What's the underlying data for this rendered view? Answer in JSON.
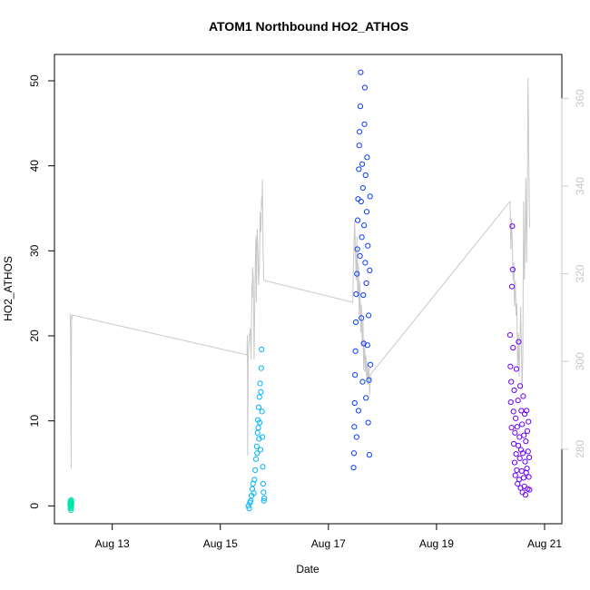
{
  "chart_data": {
    "type": "scatter",
    "title": "ATOM1 Northbound HO2_ATHOS",
    "xlabel": "Date",
    "ylabel": "HO2_ATHOS",
    "y2label": "",
    "x_range": [
      "2022-08-11T22:20",
      "2022-08-21T07:40"
    ],
    "ylim": [
      -2.1,
      53.1
    ],
    "y2lim": [
      263.0,
      370.0
    ],
    "grid": false,
    "legend": "none",
    "x_ticks": [
      {
        "date": "2022-08-13",
        "label": "Aug 13"
      },
      {
        "date": "2022-08-15",
        "label": "Aug 15"
      },
      {
        "date": "2022-08-17",
        "label": "Aug 17"
      },
      {
        "date": "2022-08-19",
        "label": "Aug 19"
      },
      {
        "date": "2022-08-21",
        "label": "Aug 21"
      }
    ],
    "y_ticks": [
      0,
      10,
      20,
      30,
      40,
      50
    ],
    "y2_ticks": [
      280,
      300,
      320,
      340,
      360
    ],
    "colors": {
      "flight1": "#00e5a8",
      "flight2": "#00b2ff",
      "flight3": "#0a3cff",
      "flight4": "#6a00ff",
      "secondary_line": "#c8c8c8",
      "frame": "#000000"
    },
    "series": [
      {
        "color_key": "flight1",
        "date": "2022-08-12",
        "t_start": "05:20",
        "t_end": "05:55",
        "points": [
          [
            "05:20",
            0.1
          ],
          [
            "05:22",
            0.4
          ],
          [
            "05:25",
            -0.3
          ],
          [
            "05:28",
            0.2
          ],
          [
            "05:30",
            0.6
          ],
          [
            "05:32",
            -0.2
          ],
          [
            "05:35",
            0.0
          ],
          [
            "05:38",
            0.5
          ],
          [
            "05:40",
            -0.5
          ],
          [
            "05:42",
            0.3
          ],
          [
            "05:45",
            0.1
          ],
          [
            "05:48",
            0.7
          ],
          [
            "05:50",
            -0.1
          ],
          [
            "05:52",
            0.2
          ],
          [
            "05:55",
            0.4
          ]
        ]
      },
      {
        "color_key": "flight2",
        "date": "2022-08-15",
        "t_start": "12:30",
        "t_end": "19:30",
        "points": [
          [
            "12:30",
            0.0
          ],
          [
            "12:50",
            -0.3
          ],
          [
            "13:10",
            0.4
          ],
          [
            "13:30",
            0.6
          ],
          [
            "13:50",
            1.2
          ],
          [
            "14:10",
            2.0
          ],
          [
            "14:30",
            2.6
          ],
          [
            "14:50",
            1.5
          ],
          [
            "15:10",
            3.1
          ],
          [
            "15:30",
            4.2
          ],
          [
            "15:50",
            5.5
          ],
          [
            "16:10",
            7.0
          ],
          [
            "16:20",
            6.2
          ],
          [
            "16:30",
            8.6
          ],
          [
            "16:40",
            10.1
          ],
          [
            "16:50",
            9.2
          ],
          [
            "17:00",
            11.6
          ],
          [
            "17:10",
            7.9
          ],
          [
            "17:20",
            12.8
          ],
          [
            "17:30",
            9.8
          ],
          [
            "17:40",
            14.4
          ],
          [
            "17:50",
            6.6
          ],
          [
            "18:00",
            13.4
          ],
          [
            "18:10",
            16.2
          ],
          [
            "18:20",
            18.4
          ],
          [
            "18:30",
            11.1
          ],
          [
            "18:40",
            8.1
          ],
          [
            "18:50",
            4.6
          ],
          [
            "19:00",
            2.6
          ],
          [
            "19:10",
            1.6
          ],
          [
            "19:20",
            0.6
          ],
          [
            "19:30",
            0.9
          ]
        ]
      },
      {
        "color_key": "flight3",
        "date": "2022-08-17",
        "t_start": "11:10",
        "t_end": "18:40",
        "points": [
          [
            "11:10",
            4.5
          ],
          [
            "11:20",
            6.2
          ],
          [
            "11:30",
            9.3
          ],
          [
            "11:40",
            12.1
          ],
          [
            "11:50",
            15.4
          ],
          [
            "12:00",
            18.2
          ],
          [
            "12:10",
            21.6
          ],
          [
            "12:20",
            24.9
          ],
          [
            "12:30",
            8.1
          ],
          [
            "12:40",
            27.3
          ],
          [
            "12:50",
            30.2
          ],
          [
            "13:00",
            33.6
          ],
          [
            "13:10",
            36.1
          ],
          [
            "13:20",
            11.2
          ],
          [
            "13:30",
            39.6
          ],
          [
            "13:40",
            42.4
          ],
          [
            "13:50",
            44.0
          ],
          [
            "14:00",
            29.4
          ],
          [
            "14:10",
            47.0
          ],
          [
            "14:20",
            51.0
          ],
          [
            "14:30",
            35.8
          ],
          [
            "14:40",
            22.1
          ],
          [
            "14:50",
            31.6
          ],
          [
            "15:00",
            40.2
          ],
          [
            "15:10",
            14.6
          ],
          [
            "15:20",
            37.4
          ],
          [
            "15:30",
            24.8
          ],
          [
            "15:40",
            19.1
          ],
          [
            "15:50",
            33.0
          ],
          [
            "16:00",
            44.9
          ],
          [
            "16:10",
            49.2
          ],
          [
            "16:20",
            28.6
          ],
          [
            "16:30",
            38.9
          ],
          [
            "16:40",
            12.7
          ],
          [
            "16:50",
            26.2
          ],
          [
            "17:00",
            34.6
          ],
          [
            "17:10",
            41.0
          ],
          [
            "17:20",
            18.9
          ],
          [
            "17:30",
            30.6
          ],
          [
            "17:40",
            9.8
          ],
          [
            "17:50",
            22.4
          ],
          [
            "18:00",
            14.8
          ],
          [
            "18:10",
            6.0
          ],
          [
            "18:20",
            27.7
          ],
          [
            "18:30",
            36.4
          ],
          [
            "18:40",
            16.6
          ]
        ]
      },
      {
        "color_key": "flight4",
        "date": "2022-08-20",
        "t_start": "08:40",
        "t_end": "17:20",
        "points": [
          [
            "08:40",
            20.1
          ],
          [
            "08:50",
            16.4
          ],
          [
            "09:00",
            12.2
          ],
          [
            "09:10",
            14.6
          ],
          [
            "09:20",
            9.2
          ],
          [
            "09:30",
            25.8
          ],
          [
            "09:40",
            32.9
          ],
          [
            "09:50",
            27.8
          ],
          [
            "10:00",
            18.6
          ],
          [
            "10:10",
            11.1
          ],
          [
            "10:20",
            7.3
          ],
          [
            "10:30",
            13.6
          ],
          [
            "10:40",
            5.1
          ],
          [
            "10:50",
            8.6
          ],
          [
            "11:00",
            3.6
          ],
          [
            "11:10",
            10.3
          ],
          [
            "11:20",
            6.1
          ],
          [
            "11:30",
            16.1
          ],
          [
            "11:40",
            4.2
          ],
          [
            "11:50",
            9.3
          ],
          [
            "12:00",
            2.6
          ],
          [
            "12:10",
            12.4
          ],
          [
            "12:20",
            7.1
          ],
          [
            "12:30",
            19.3
          ],
          [
            "12:40",
            3.1
          ],
          [
            "12:50",
            8.1
          ],
          [
            "13:00",
            5.6
          ],
          [
            "13:10",
            14.1
          ],
          [
            "13:20",
            2.1
          ],
          [
            "13:30",
            6.6
          ],
          [
            "13:40",
            11.2
          ],
          [
            "13:50",
            4.1
          ],
          [
            "14:00",
            9.6
          ],
          [
            "14:10",
            1.6
          ],
          [
            "14:20",
            6.2
          ],
          [
            "14:30",
            12.9
          ],
          [
            "14:40",
            3.3
          ],
          [
            "14:50",
            8.3
          ],
          [
            "15:00",
            2.3
          ],
          [
            "15:10",
            10.8
          ],
          [
            "15:20",
            5.2
          ],
          [
            "15:30",
            1.3
          ],
          [
            "15:40",
            7.6
          ],
          [
            "15:50",
            3.9
          ],
          [
            "16:00",
            11.2
          ],
          [
            "16:10",
            4.4
          ],
          [
            "16:20",
            8.8
          ],
          [
            "16:30",
            2.0
          ],
          [
            "16:40",
            6.4
          ],
          [
            "16:50",
            9.9
          ],
          [
            "17:00",
            3.4
          ],
          [
            "17:10",
            5.7
          ],
          [
            "17:20",
            1.9
          ]
        ]
      }
    ],
    "secondary_series": {
      "color_key": "secondary_line",
      "description_axis": "right",
      "points": [
        [
          "2022-08-12T05:10",
          311.0
        ],
        [
          "2022-08-12T05:20",
          310.2
        ],
        [
          "2022-08-12T05:30",
          306.5
        ],
        [
          "2022-08-12T05:40",
          285.5
        ],
        [
          "2022-08-12T05:45",
          275.5
        ],
        [
          "2022-08-12T05:50",
          296.5
        ],
        [
          "2022-08-12T05:55",
          310.5
        ],
        [
          "2022-08-12T06:00",
          309.5
        ],
        [
          "2022-08-12T06:10",
          310.6
        ],
        [
          "2022-08-15T11:50",
          301.5
        ],
        [
          "2022-08-15T12:00",
          306.0
        ],
        [
          "2022-08-15T12:10",
          278.5
        ],
        [
          "2022-08-15T12:20",
          300.6
        ],
        [
          "2022-08-15T12:30",
          302.5
        ],
        [
          "2022-08-15T13:00",
          306.0
        ],
        [
          "2022-08-15T13:20",
          307.5
        ],
        [
          "2022-08-15T13:40",
          300.5
        ],
        [
          "2022-08-15T14:00",
          317.5
        ],
        [
          "2022-08-15T14:10",
          314.5
        ],
        [
          "2022-08-15T14:20",
          321.5
        ],
        [
          "2022-08-15T14:40",
          318.5
        ],
        [
          "2022-08-15T15:00",
          300.5
        ],
        [
          "2022-08-15T15:20",
          315.2
        ],
        [
          "2022-08-15T15:40",
          326.0
        ],
        [
          "2022-08-15T15:50",
          328.5
        ],
        [
          "2022-08-15T16:00",
          313.5
        ],
        [
          "2022-08-15T16:10",
          323.5
        ],
        [
          "2022-08-15T16:20",
          330.2
        ],
        [
          "2022-08-15T16:40",
          325.5
        ],
        [
          "2022-08-15T17:00",
          317.5
        ],
        [
          "2022-08-15T17:20",
          321.6
        ],
        [
          "2022-08-15T17:40",
          334.0
        ],
        [
          "2022-08-15T18:00",
          329.5
        ],
        [
          "2022-08-15T18:20",
          337.5
        ],
        [
          "2022-08-15T18:30",
          335.2
        ],
        [
          "2022-08-15T18:40",
          341.5
        ],
        [
          "2022-08-15T19:00",
          324.5
        ],
        [
          "2022-08-15T19:20",
          318.5
        ],
        [
          "2022-08-17T10:50",
          313.5
        ],
        [
          "2022-08-17T11:00",
          320.2
        ],
        [
          "2022-08-17T11:20",
          326.5
        ],
        [
          "2022-08-17T11:40",
          332.0
        ],
        [
          "2022-08-17T12:00",
          324.5
        ],
        [
          "2022-08-17T12:20",
          318.5
        ],
        [
          "2022-08-17T12:40",
          328.5
        ],
        [
          "2022-08-17T13:00",
          314.5
        ],
        [
          "2022-08-17T13:20",
          322.5
        ],
        [
          "2022-08-17T13:40",
          310.6
        ],
        [
          "2022-08-17T14:00",
          318.2
        ],
        [
          "2022-08-17T14:20",
          306.5
        ],
        [
          "2022-08-17T14:40",
          313.0
        ],
        [
          "2022-08-17T15:00",
          303.5
        ],
        [
          "2022-08-17T15:20",
          309.5
        ],
        [
          "2022-08-17T15:40",
          298.0
        ],
        [
          "2022-08-17T16:00",
          305.0
        ],
        [
          "2022-08-17T16:20",
          297.6
        ],
        [
          "2022-08-17T16:40",
          301.5
        ],
        [
          "2022-08-17T17:00",
          295.5
        ],
        [
          "2022-08-17T17:20",
          300.0
        ],
        [
          "2022-08-17T17:40",
          294.8
        ],
        [
          "2022-08-17T18:00",
          298.5
        ],
        [
          "2022-08-17T18:20",
          292.5
        ],
        [
          "2022-08-17T18:40",
          297.0
        ],
        [
          "2022-08-20T08:40",
          336.5
        ],
        [
          "2022-08-20T09:00",
          325.5
        ],
        [
          "2022-08-20T09:20",
          332.5
        ],
        [
          "2022-08-20T09:40",
          326.8
        ],
        [
          "2022-08-20T10:00",
          318.5
        ],
        [
          "2022-08-20T10:20",
          322.5
        ],
        [
          "2022-08-20T10:40",
          312.6
        ],
        [
          "2022-08-20T11:00",
          318.5
        ],
        [
          "2022-08-20T11:20",
          310.5
        ],
        [
          "2022-08-20T11:40",
          313.2
        ],
        [
          "2022-08-20T12:00",
          298.5
        ],
        [
          "2022-08-20T12:20",
          306.5
        ],
        [
          "2022-08-20T12:40",
          296.5
        ],
        [
          "2022-08-20T13:00",
          302.6
        ],
        [
          "2022-08-20T13:20",
          312.5
        ],
        [
          "2022-08-20T13:40",
          304.2
        ],
        [
          "2022-08-20T14:00",
          293.5
        ],
        [
          "2022-08-20T14:20",
          301.5
        ],
        [
          "2022-08-20T14:40",
          336.5
        ],
        [
          "2022-08-20T15:00",
          318.6
        ],
        [
          "2022-08-20T15:20",
          327.5
        ],
        [
          "2022-08-20T15:40",
          341.8
        ],
        [
          "2022-08-20T16:00",
          322.5
        ],
        [
          "2022-08-20T16:20",
          338.5
        ],
        [
          "2022-08-20T16:40",
          364.6
        ],
        [
          "2022-08-20T17:00",
          345.5
        ],
        [
          "2022-08-20T17:20",
          330.5
        ]
      ]
    }
  }
}
